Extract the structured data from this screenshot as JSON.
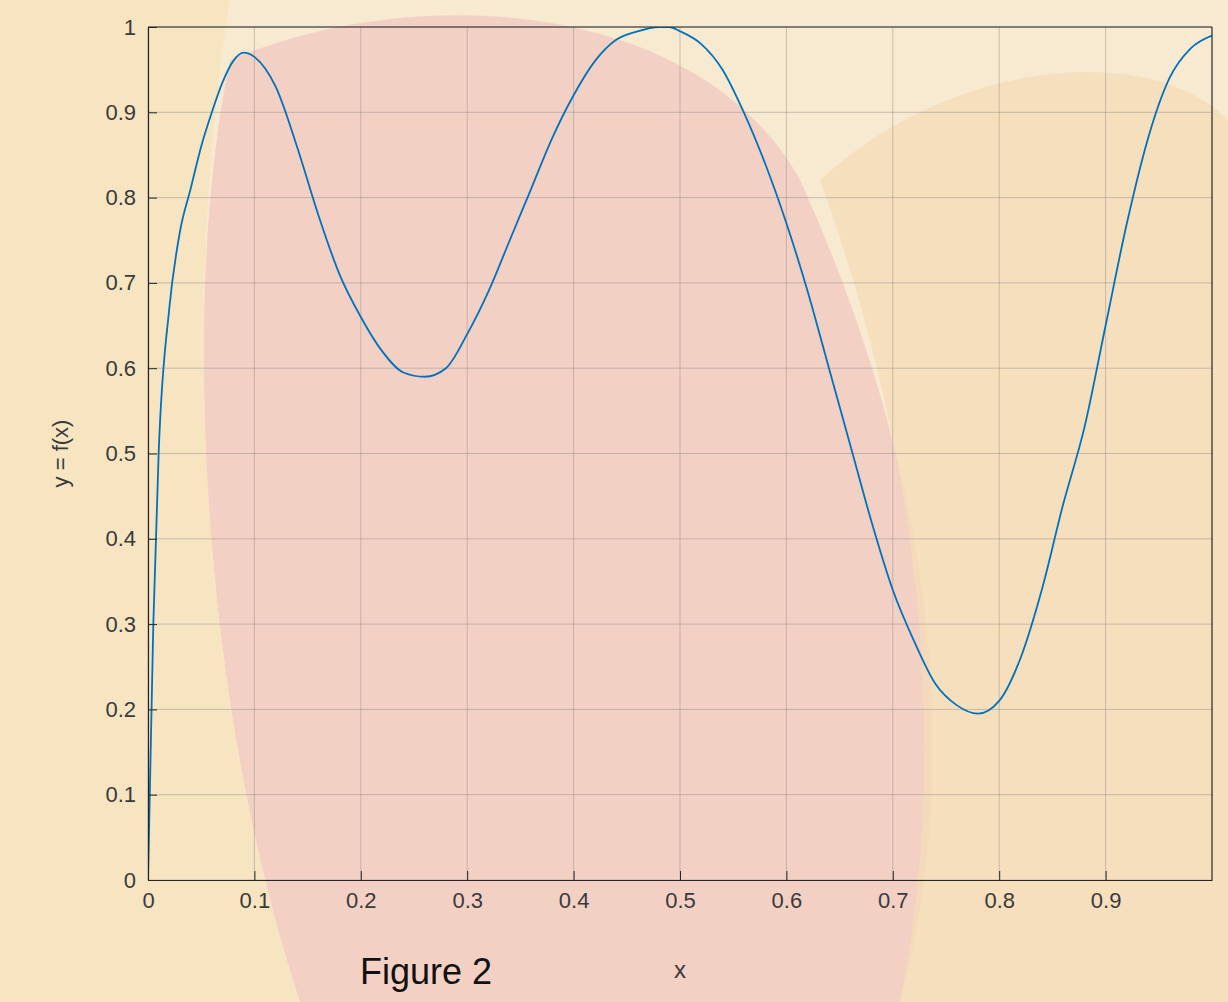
{
  "chart_data": {
    "type": "line",
    "xlabel": "x",
    "ylabel": "y = f(x)",
    "annotation": "Figure 2",
    "x": [
      0,
      0.005,
      0.01,
      0.02,
      0.03,
      0.04,
      0.05,
      0.06,
      0.07,
      0.08,
      0.09,
      0.1,
      0.12,
      0.14,
      0.16,
      0.18,
      0.2,
      0.22,
      0.24,
      0.26,
      0.28,
      0.3,
      0.32,
      0.34,
      0.36,
      0.38,
      0.4,
      0.42,
      0.44,
      0.46,
      0.48,
      0.49,
      0.5,
      0.52,
      0.54,
      0.56,
      0.58,
      0.6,
      0.62,
      0.64,
      0.66,
      0.68,
      0.7,
      0.72,
      0.74,
      0.76,
      0.78,
      0.8,
      0.82,
      0.84,
      0.86,
      0.88,
      0.9,
      0.92,
      0.94,
      0.96,
      0.98,
      1
    ],
    "series": [
      {
        "color": "#0072bd",
        "values": [
          0,
          0.3,
          0.5,
          0.67,
          0.76,
          0.81,
          0.86,
          0.9,
          0.935,
          0.96,
          0.97,
          0.965,
          0.93,
          0.86,
          0.78,
          0.71,
          0.66,
          0.62,
          0.595,
          0.59,
          0.6,
          0.64,
          0.69,
          0.75,
          0.81,
          0.87,
          0.92,
          0.96,
          0.985,
          0.995,
          1,
          1,
          0.995,
          0.98,
          0.95,
          0.9,
          0.84,
          0.77,
          0.69,
          0.6,
          0.51,
          0.42,
          0.34,
          0.28,
          0.23,
          0.205,
          0.195,
          0.21,
          0.26,
          0.34,
          0.44,
          0.53,
          0.65,
          0.77,
          0.87,
          0.94,
          0.975,
          0.99
        ]
      }
    ],
    "xlim": [
      0,
      1
    ],
    "xticks": [
      0,
      0.1,
      0.2,
      0.3,
      0.4,
      0.5,
      0.6,
      0.7,
      0.8,
      0.9
    ],
    "ylim": [
      0,
      1
    ],
    "yticks": [
      0,
      0.1,
      0.2,
      0.3,
      0.4,
      0.5,
      0.6,
      0.7,
      0.8,
      0.9,
      1
    ],
    "grid": true
  }
}
